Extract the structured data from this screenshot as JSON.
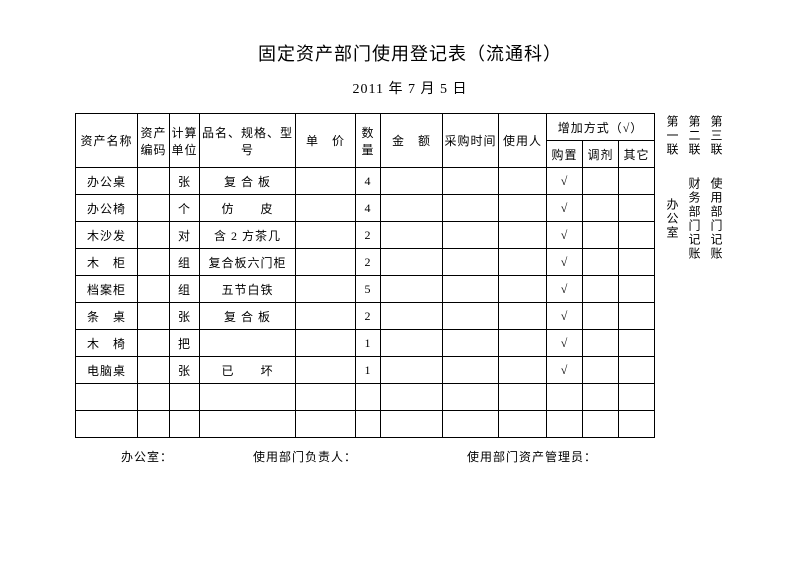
{
  "title": "固定资产部门使用登记表（流通科）",
  "date": "2011 年 7 月 5 日",
  "headers": {
    "name": "资产名称",
    "code": "资产编码",
    "unit": "计算单位",
    "spec": "品名、规格、型号",
    "price": "单　价",
    "qty": "数量",
    "amount": "金　额",
    "buytime": "采购时间",
    "user": "使用人",
    "addMode": "增加方式（√）",
    "gz": "购置",
    "tj": "调剂",
    "qt": "其它"
  },
  "rows": [
    {
      "name": "办公桌",
      "code": "",
      "unit": "张",
      "spec": "复 合 板",
      "price": "",
      "qty": "4",
      "amount": "",
      "buytime": "",
      "user": "",
      "gz": "√",
      "tj": "",
      "qt": ""
    },
    {
      "name": "办公椅",
      "code": "",
      "unit": "个",
      "spec": "仿　　皮",
      "price": "",
      "qty": "4",
      "amount": "",
      "buytime": "",
      "user": "",
      "gz": "√",
      "tj": "",
      "qt": ""
    },
    {
      "name": "木沙发",
      "code": "",
      "unit": "对",
      "spec": "含 2 方茶几",
      "price": "",
      "qty": "2",
      "amount": "",
      "buytime": "",
      "user": "",
      "gz": "√",
      "tj": "",
      "qt": ""
    },
    {
      "name": "木　柜",
      "code": "",
      "unit": "组",
      "spec": "复合板六门柜",
      "price": "",
      "qty": "2",
      "amount": "",
      "buytime": "",
      "user": "",
      "gz": "√",
      "tj": "",
      "qt": ""
    },
    {
      "name": "档案柜",
      "code": "",
      "unit": "组",
      "spec": "五节白铁",
      "price": "",
      "qty": "5",
      "amount": "",
      "buytime": "",
      "user": "",
      "gz": "√",
      "tj": "",
      "qt": ""
    },
    {
      "name": "条　桌",
      "code": "",
      "unit": "张",
      "spec": "复 合 板",
      "price": "",
      "qty": "2",
      "amount": "",
      "buytime": "",
      "user": "",
      "gz": "√",
      "tj": "",
      "qt": ""
    },
    {
      "name": "木　椅",
      "code": "",
      "unit": "把",
      "spec": "",
      "price": "",
      "qty": "1",
      "amount": "",
      "buytime": "",
      "user": "",
      "gz": "√",
      "tj": "",
      "qt": ""
    },
    {
      "name": "电脑桌",
      "code": "",
      "unit": "张",
      "spec": "已　　坏",
      "price": "",
      "qty": "1",
      "amount": "",
      "buytime": "",
      "user": "",
      "gz": "√",
      "tj": "",
      "qt": ""
    },
    {
      "name": "",
      "code": "",
      "unit": "",
      "spec": "",
      "price": "",
      "qty": "",
      "amount": "",
      "buytime": "",
      "user": "",
      "gz": "",
      "tj": "",
      "qt": ""
    },
    {
      "name": "",
      "code": "",
      "unit": "",
      "spec": "",
      "price": "",
      "qty": "",
      "amount": "",
      "buytime": "",
      "user": "",
      "gz": "",
      "tj": "",
      "qt": ""
    }
  ],
  "side": {
    "top": [
      "第一联",
      "第二联",
      "第三联"
    ],
    "bottom": [
      "办公室",
      "财务部门记账",
      "使用部门记账"
    ]
  },
  "footer": {
    "office": "办公室：",
    "deptHead": "使用部门负责人：",
    "assetMgr": "使用部门资产管理员："
  }
}
